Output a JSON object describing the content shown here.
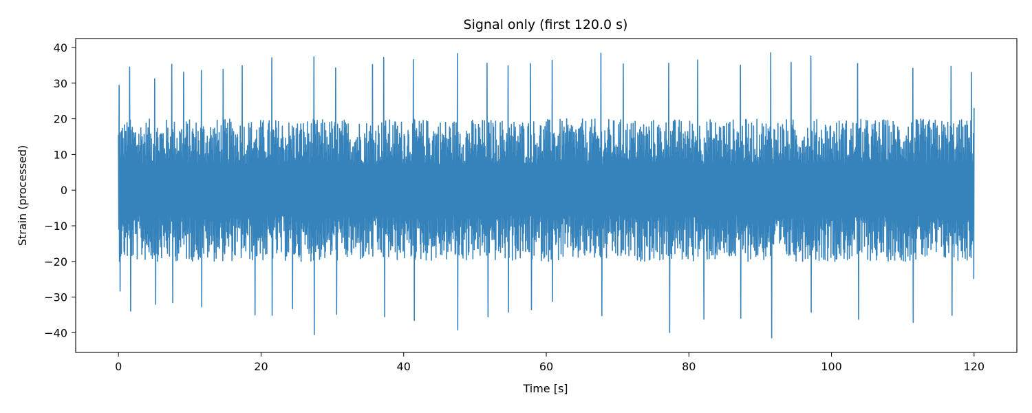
{
  "chart_data": {
    "type": "line",
    "title": "Signal only (first 120.0 s)",
    "xlabel": "Time [s]",
    "ylabel": "Strain (processed)",
    "xlim": [
      -6,
      126
    ],
    "ylim": [
      -45.5,
      42.5
    ],
    "x_ticks": [
      0,
      20,
      40,
      60,
      80,
      100,
      120
    ],
    "y_ticks": [
      -40,
      -30,
      -20,
      -10,
      0,
      10,
      20,
      30,
      40
    ],
    "grid": false,
    "legend": "none",
    "series": [
      {
        "color": "#3683bb",
        "x_start": 0.0,
        "x_end": 120.0,
        "y_envelope": {
          "typical_max": 20,
          "typical_min": -20,
          "peak_max": 38.7,
          "peak_min": -41.5
        },
        "peaks": [
          [
            0.1,
            29.4
          ],
          [
            0.2,
            -28.3
          ],
          [
            1.6,
            34.5
          ],
          [
            1.7,
            -33.9
          ],
          [
            5.1,
            31.2
          ],
          [
            5.2,
            -32.0
          ],
          [
            7.5,
            35.3
          ],
          [
            7.6,
            -31.5
          ],
          [
            9.1,
            33.1
          ],
          [
            11.6,
            33.6
          ],
          [
            11.7,
            -32.7
          ],
          [
            14.7,
            33.9
          ],
          [
            17.4,
            34.9
          ],
          [
            19.2,
            -35.0
          ],
          [
            21.5,
            37.1
          ],
          [
            21.6,
            -35.1
          ],
          [
            24.4,
            -33.2
          ],
          [
            27.4,
            37.4
          ],
          [
            27.5,
            -40.5
          ],
          [
            30.5,
            34.3
          ],
          [
            30.6,
            -34.8
          ],
          [
            35.6,
            35.2
          ],
          [
            37.2,
            37.2
          ],
          [
            37.3,
            -35.5
          ],
          [
            41.4,
            36.6
          ],
          [
            41.5,
            -36.5
          ],
          [
            47.5,
            38.3
          ],
          [
            47.6,
            -39.2
          ],
          [
            51.7,
            35.6
          ],
          [
            51.8,
            -35.5
          ],
          [
            54.6,
            34.9
          ],
          [
            54.7,
            -34.2
          ],
          [
            57.8,
            35.5
          ],
          [
            57.9,
            -33.5
          ],
          [
            60.8,
            36.4
          ],
          [
            60.9,
            -31.2
          ],
          [
            67.7,
            38.4
          ],
          [
            67.8,
            -35.2
          ],
          [
            70.8,
            35.4
          ],
          [
            77.2,
            35.6
          ],
          [
            77.3,
            -39.9
          ],
          [
            81.2,
            36.5
          ],
          [
            82.1,
            -36.2
          ],
          [
            87.2,
            35.0
          ],
          [
            87.3,
            -35.9
          ],
          [
            91.5,
            38.5
          ],
          [
            91.6,
            -41.4
          ],
          [
            94.3,
            35.8
          ],
          [
            97.1,
            37.6
          ],
          [
            97.2,
            -34.2
          ],
          [
            103.7,
            35.5
          ],
          [
            103.8,
            -36.2
          ],
          [
            111.4,
            34.2
          ],
          [
            111.5,
            -37.1
          ],
          [
            116.8,
            34.7
          ],
          [
            116.9,
            -35.1
          ],
          [
            119.6,
            33.0
          ],
          [
            120.0,
            23.0
          ],
          [
            120.0,
            -24.8
          ]
        ]
      }
    ]
  }
}
